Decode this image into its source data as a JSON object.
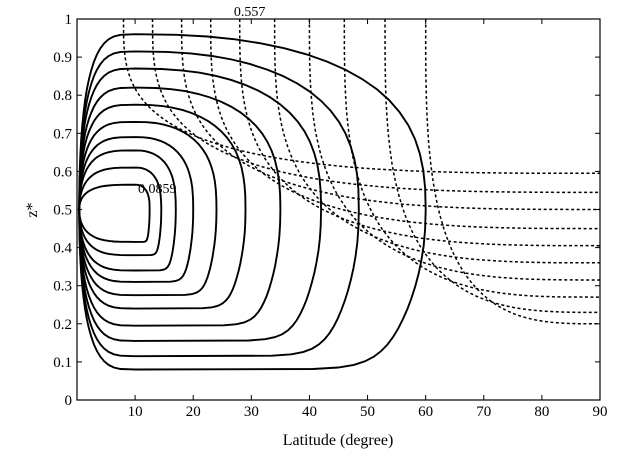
{
  "chart_data": {
    "type": "contour",
    "xlabel": "Latitude (degree)",
    "ylabel": "z*",
    "xlim": [
      0,
      90
    ],
    "ylim": [
      0,
      1
    ],
    "x_ticks": [
      "10",
      "20",
      "30",
      "40",
      "50",
      "60",
      "70",
      "80",
      "90"
    ],
    "y_ticks": [
      "0",
      "0.1",
      "0.2",
      "0.3",
      "0.4",
      "0.5",
      "0.6",
      "0.7",
      "0.8",
      "0.9",
      "1"
    ],
    "grid": false,
    "annotations": [
      {
        "text": "0.557",
        "x": 27,
        "y": 1.0
      },
      {
        "text": "0.0859",
        "x": 10.5,
        "y": 0.535
      }
    ],
    "solid_contours": {
      "line_style": "solid",
      "center": [
        10,
        0.5
      ],
      "levels": [
        {
          "xmax": 60,
          "ytop": 0.96,
          "ybottom": 0.08
        },
        {
          "xmax": 48.5,
          "ytop": 0.915,
          "ybottom": 0.115
        },
        {
          "xmax": 42,
          "ytop": 0.87,
          "ybottom": 0.155
        },
        {
          "xmax": 35,
          "ytop": 0.82,
          "ybottom": 0.195
        },
        {
          "xmax": 29,
          "ytop": 0.775,
          "ybottom": 0.24
        },
        {
          "xmax": 24,
          "ytop": 0.73,
          "ybottom": 0.275
        },
        {
          "xmax": 20,
          "ytop": 0.69,
          "ybottom": 0.31
        },
        {
          "xmax": 17,
          "ytop": 0.655,
          "ybottom": 0.34
        },
        {
          "xmax": 14.5,
          "ytop": 0.61,
          "ybottom": 0.38
        },
        {
          "xmax": 12.5,
          "ytop": 0.565,
          "ybottom": 0.415
        }
      ]
    },
    "dashed_contours": {
      "line_style": "dashed",
      "levels": [
        {
          "x_top": 8,
          "y_bottom": 0.595
        },
        {
          "x_top": 13,
          "y_bottom": 0.545
        },
        {
          "x_top": 18,
          "y_bottom": 0.5
        },
        {
          "x_top": 23,
          "y_bottom": 0.45
        },
        {
          "x_top": 28,
          "y_bottom": 0.405
        },
        {
          "x_top": 34,
          "y_bottom": 0.36
        },
        {
          "x_top": 40,
          "y_bottom": 0.315
        },
        {
          "x_top": 46,
          "y_bottom": 0.27
        },
        {
          "x_top": 53,
          "y_bottom": 0.23
        },
        {
          "x_top": 60,
          "y_bottom": 0.2
        }
      ]
    }
  }
}
